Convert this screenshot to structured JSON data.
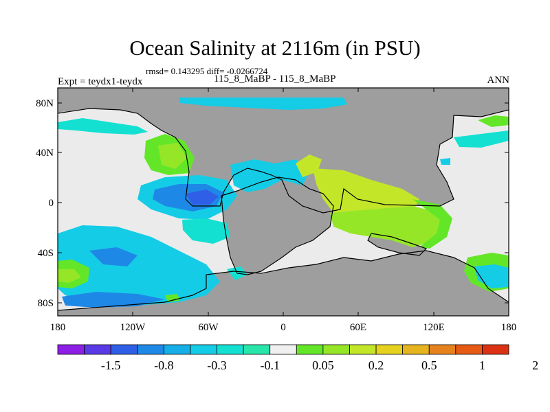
{
  "title": "Ocean Salinity at 2116m (in PSU)",
  "stats_line": "rmsd= 0.143295 diff= -0.0266724",
  "left_label": "Expt = teydx1-teydx",
  "center_label": "115_8_MaBP - 115_8_MaBP",
  "right_label": "ANN",
  "lat_ticks": [
    "80N",
    "40N",
    "0",
    "40S",
    "80S"
  ],
  "lon_ticks": [
    "180",
    "120W",
    "60W",
    "0",
    "60E",
    "120E",
    "180"
  ],
  "colorbar": {
    "labels": [
      "-1.5",
      "-0.8",
      "-0.3",
      "-0.1",
      "0.05",
      "0.2",
      "0.5",
      "1",
      "2"
    ],
    "colors": [
      "#8c1ee6",
      "#5a3ae6",
      "#2f5fe6",
      "#1e88e6",
      "#16aee6",
      "#14cce6",
      "#14e0d2",
      "#28e6aa",
      "#f0f0f0",
      "#64e628",
      "#96e628",
      "#c3e628",
      "#e6d21e",
      "#e6b41e",
      "#e6821e",
      "#e65a14",
      "#dc3214"
    ]
  },
  "colors": {
    "land": "#9e9e9e",
    "neutral_ocean": "#ebebeb"
  }
}
